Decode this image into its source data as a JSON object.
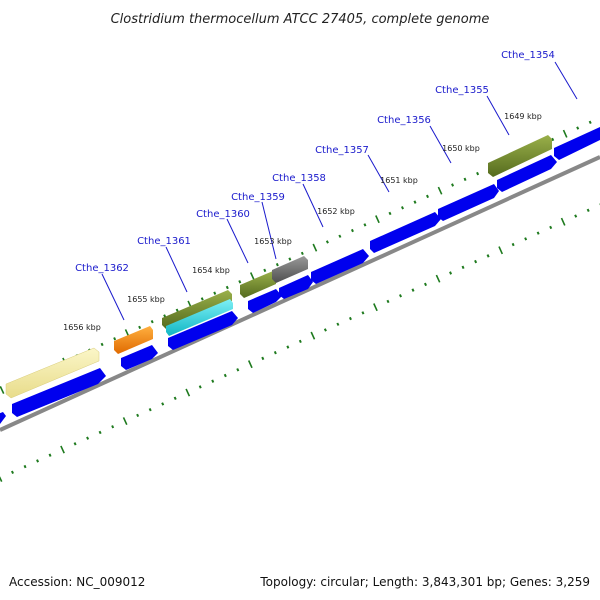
{
  "title": "Clostridium thermocellum ATCC 27405, complete genome",
  "accession": "Accession: NC_009012",
  "summary": "Topology: circular; Length: 3,843,301 bp; Genes: 3,259",
  "kbp_labels": [
    "1649 kbp",
    "1650 kbp",
    "1651 kbp",
    "1652 kbp",
    "1653 kbp",
    "1654 kbp",
    "1655 kbp",
    "1656 kbp"
  ],
  "gene_labels": [
    "Cthe_1354",
    "Cthe_1355",
    "Cthe_1356",
    "Cthe_1357",
    "Cthe_1358",
    "Cthe_1359",
    "Cthe_1360",
    "Cthe_1361",
    "Cthe_1362"
  ],
  "colors": {
    "cds": "#0000ee",
    "backbone": "#777777",
    "tick": "#1e7a1e",
    "label": "#1a1acc",
    "pale_yellow": "#f3eca8",
    "orange": "#ff8c00",
    "olive": "#6b8e23",
    "cyan": "#22d4e0",
    "gray": "#666666"
  }
}
